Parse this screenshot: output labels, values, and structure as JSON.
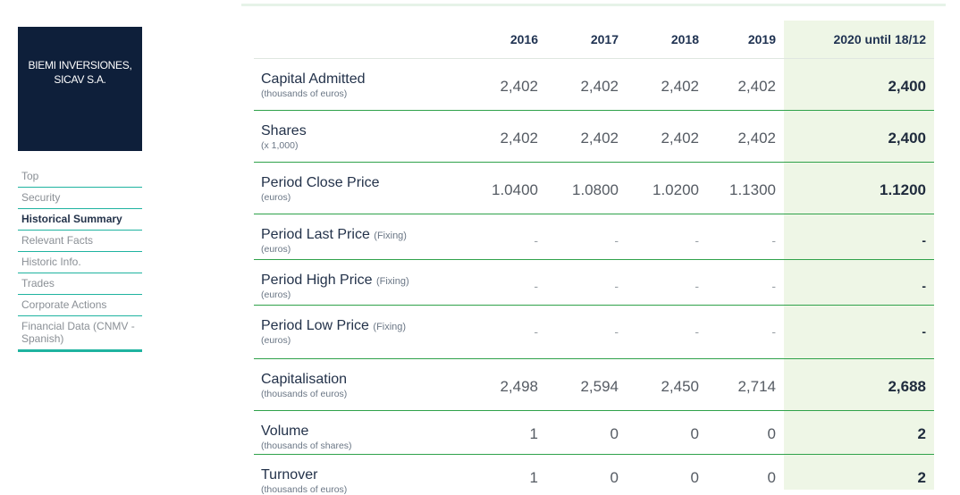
{
  "company": {
    "name": "BIEMI INVERSIONES, SICAV S.A."
  },
  "nav": [
    {
      "label": "Top"
    },
    {
      "label": "Security"
    },
    {
      "label": "Historical Summary",
      "active": true
    },
    {
      "label": "Relevant Facts"
    },
    {
      "label": "Historic Info."
    },
    {
      "label": "Trades"
    },
    {
      "label": "Corporate Actions"
    },
    {
      "label": "Financial Data (CNMV - Spanish)"
    }
  ],
  "columns": [
    "2016",
    "2017",
    "2018",
    "2019",
    "2020 until 18/12"
  ],
  "rows": [
    {
      "label": "Capital Admitted",
      "fixing": "",
      "unit": "(thousands of euros)",
      "values": [
        "2,402",
        "2,402",
        "2,402",
        "2,402",
        "2,400"
      ]
    },
    {
      "label": "Shares",
      "fixing": "",
      "unit": "(x 1,000)",
      "values": [
        "2,402",
        "2,402",
        "2,402",
        "2,402",
        "2,400"
      ]
    },
    {
      "label": "Period Close Price",
      "fixing": "",
      "unit": "(euros)",
      "values": [
        "1.0400",
        "1.0800",
        "1.0200",
        "1.1300",
        "1.1200"
      ]
    },
    {
      "label": "Period Last Price",
      "fixing": "(Fixing)",
      "unit": "(euros)",
      "values": [
        "-",
        "-",
        "-",
        "-",
        "-"
      ]
    },
    {
      "label": "Period High Price",
      "fixing": "(Fixing)",
      "unit": "(euros)",
      "values": [
        "-",
        "-",
        "-",
        "-",
        "-"
      ]
    },
    {
      "label": "Period Low Price",
      "fixing": "(Fixing)",
      "unit": "(euros)",
      "values": [
        "-",
        "-",
        "-",
        "-",
        "-"
      ]
    },
    {
      "label": "Capitalisation",
      "fixing": "",
      "unit": "(thousands of euros)",
      "values": [
        "2,498",
        "2,594",
        "2,450",
        "2,714",
        "2,688"
      ]
    },
    {
      "label": "Volume",
      "fixing": "",
      "unit": "(thousands of shares)",
      "values": [
        "1",
        "0",
        "0",
        "0",
        "2"
      ]
    },
    {
      "label": "Turnover",
      "fixing": "",
      "unit": "(thousands of euros)",
      "values": [
        "1",
        "0",
        "0",
        "0",
        "2"
      ]
    }
  ]
}
